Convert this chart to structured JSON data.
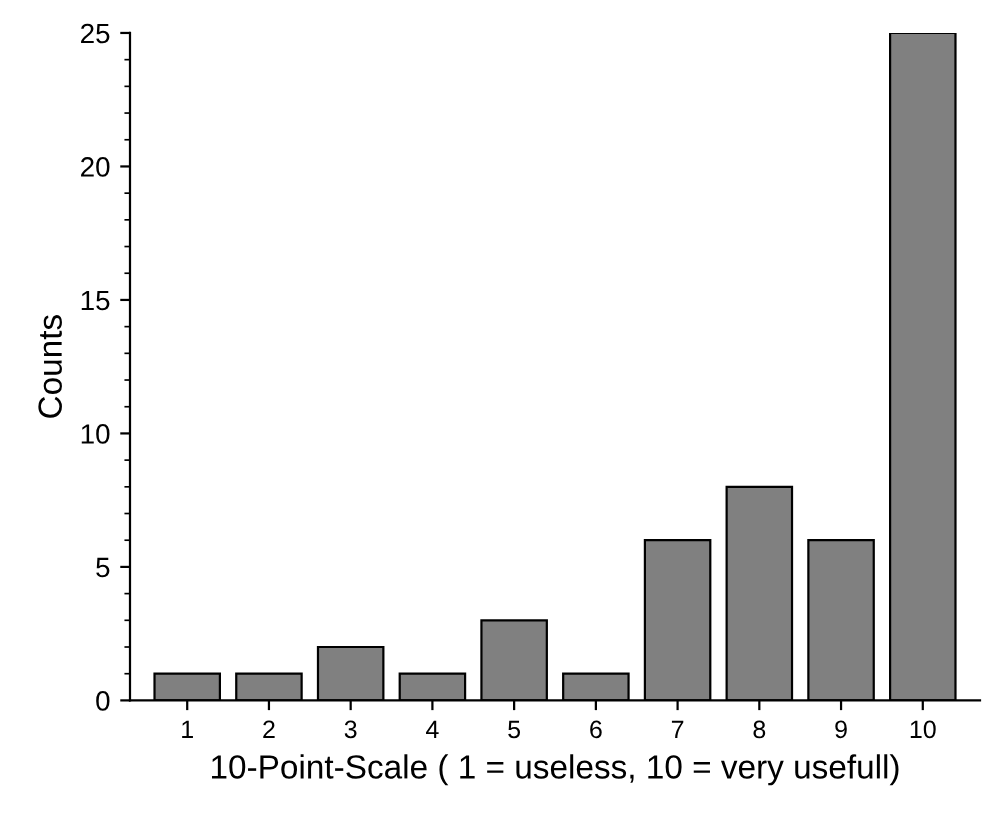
{
  "chart_data": {
    "type": "bar",
    "xlabel": "10-Point-Scale ( 1 = useless, 10 = very usefull)",
    "ylabel": "Counts",
    "categories": [
      "1",
      "2",
      "3",
      "4",
      "5",
      "6",
      "7",
      "8",
      "9",
      "10"
    ],
    "values": [
      1,
      1,
      2,
      1,
      3,
      1,
      6,
      8,
      6,
      25
    ],
    "color": "#808080",
    "ylim": [
      0,
      25
    ],
    "yticks": [
      0,
      5,
      10,
      15,
      20,
      25
    ],
    "grid": false
  }
}
